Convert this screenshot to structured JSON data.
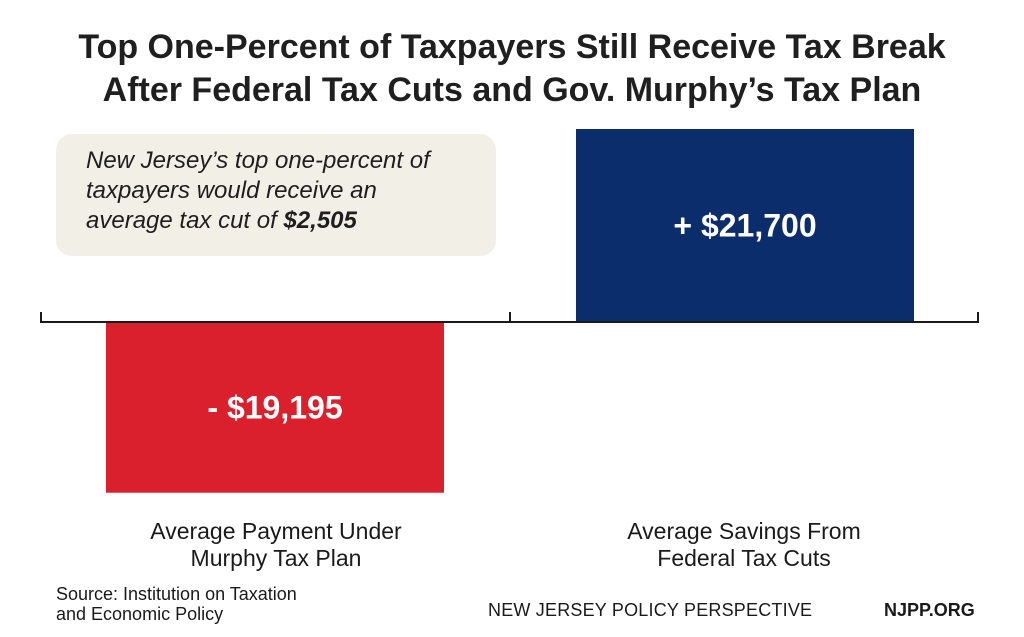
{
  "title": {
    "line1": "Top One-Percent of Taxpayers Still Receive Tax Break",
    "line2": "After Federal Tax Cuts and Gov. Murphy’s Tax Plan"
  },
  "callout": {
    "line1": "New Jersey’s top one-percent of",
    "line2": "taxpayers would receive an",
    "line3_prefix": "average tax cut of ",
    "line3_value": "$2,505"
  },
  "chart_data": {
    "type": "bar",
    "categories": [
      "Average Payment Under Murphy Tax Plan",
      "Average Savings From Federal Tax Cuts"
    ],
    "category_lines": [
      [
        "Average Payment Under",
        "Murphy Tax Plan"
      ],
      [
        "Average Savings From",
        "Federal Tax Cuts"
      ]
    ],
    "values": [
      -19195,
      21700
    ],
    "data_labels": [
      "- $19,195",
      "+ $21,700"
    ],
    "colors": [
      "#d9202c",
      "#0c2d6b"
    ],
    "title": "Top One-Percent of Taxpayers Still Receive Tax Break After Federal Tax Cuts and Gov. Murphy’s Tax Plan",
    "xlabel": "",
    "ylabel": "",
    "grid": false,
    "legend": "none"
  },
  "footer": {
    "source_line1": "Source: Institution on Taxation",
    "source_line2": "and Economic Policy",
    "org": "NEW JERSEY POLICY PERSPECTIVE",
    "site": "NJPP.ORG"
  }
}
